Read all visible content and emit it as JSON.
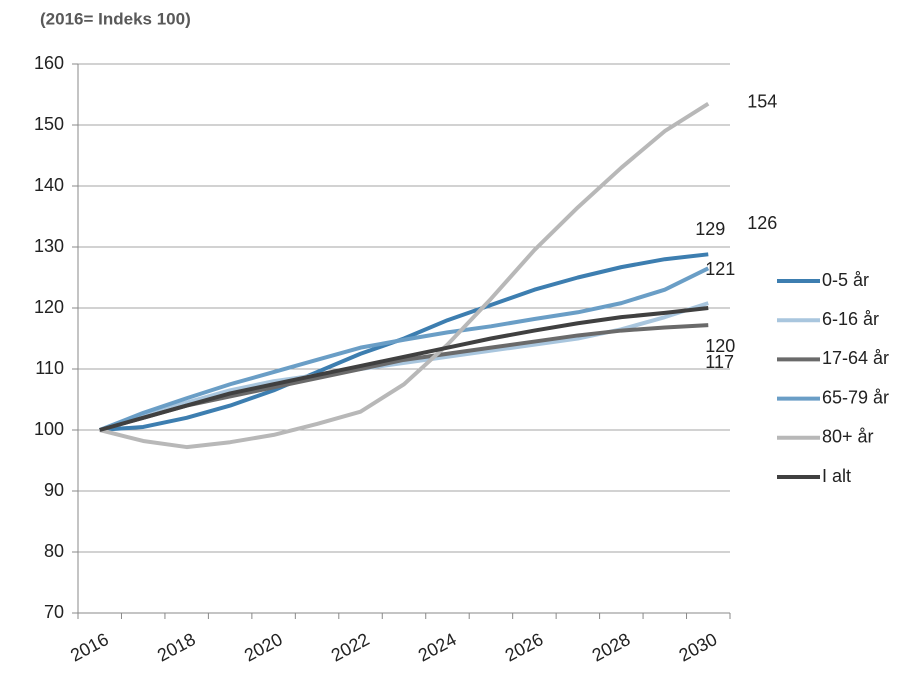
{
  "chart_data": {
    "type": "line",
    "title": "(2016= Indeks 100)",
    "categories": [
      "2016",
      null,
      "2018",
      null,
      "2020",
      null,
      "2022",
      null,
      "2024",
      null,
      "2026",
      null,
      "2028",
      null,
      "2030"
    ],
    "ylim": [
      70,
      160
    ],
    "yticks": [
      70,
      80,
      90,
      100,
      110,
      120,
      130,
      140,
      150,
      160
    ],
    "grid": true,
    "series": [
      {
        "name": "0-5 år",
        "color": "#3d7eb0",
        "values": [
          100,
          100.5,
          102,
          104,
          106.5,
          109.5,
          112.5,
          115,
          118,
          120.5,
          123,
          125,
          126.7,
          128,
          128.8
        ],
        "value_labels": [
          null,
          null,
          null,
          null,
          null,
          null,
          null,
          null,
          null,
          null,
          null,
          null,
          null,
          null,
          "129"
        ]
      },
      {
        "name": "6-16 år",
        "color": "#a9c6de",
        "values": [
          100,
          102.5,
          104.5,
          106.5,
          108,
          109,
          110,
          111,
          112,
          113,
          114,
          115,
          116.5,
          118.5,
          120.8
        ],
        "value_labels": [
          null,
          null,
          null,
          null,
          null,
          null,
          null,
          null,
          null,
          null,
          null,
          null,
          null,
          null,
          "121"
        ]
      },
      {
        "name": "17-64 år",
        "color": "#6a6a6a",
        "values": [
          100,
          102,
          104,
          105.5,
          107,
          108.5,
          110,
          111.5,
          112.5,
          113.5,
          114.5,
          115.5,
          116.3,
          116.8,
          117.2
        ],
        "value_labels": [
          null,
          null,
          null,
          null,
          null,
          null,
          null,
          null,
          null,
          null,
          null,
          null,
          null,
          null,
          "117"
        ]
      },
      {
        "name": "65-79 år",
        "color": "#6a9ec6",
        "values": [
          100,
          102.8,
          105.2,
          107.5,
          109.5,
          111.5,
          113.5,
          114.8,
          116,
          117,
          118.2,
          119.3,
          120.8,
          123,
          126.5
        ],
        "value_labels": [
          null,
          null,
          null,
          null,
          null,
          null,
          null,
          null,
          null,
          null,
          null,
          null,
          null,
          null,
          "126"
        ]
      },
      {
        "name": "80+ år",
        "color": "#b8b8b8",
        "values": [
          100,
          98.2,
          97.2,
          98,
          99.2,
          101,
          103,
          107.5,
          114,
          121.5,
          129.5,
          136.5,
          143,
          149,
          153.5
        ],
        "value_labels": [
          null,
          null,
          null,
          null,
          null,
          null,
          null,
          null,
          null,
          null,
          null,
          null,
          null,
          null,
          "154"
        ]
      },
      {
        "name": "I alt",
        "color": "#404040",
        "values": [
          100,
          102,
          104,
          106,
          107.5,
          109,
          110.5,
          112,
          113.5,
          115,
          116.3,
          117.5,
          118.5,
          119.2,
          120
        ],
        "value_labels": [
          null,
          null,
          null,
          null,
          null,
          null,
          null,
          null,
          null,
          null,
          null,
          null,
          null,
          null,
          "120"
        ]
      }
    ]
  }
}
